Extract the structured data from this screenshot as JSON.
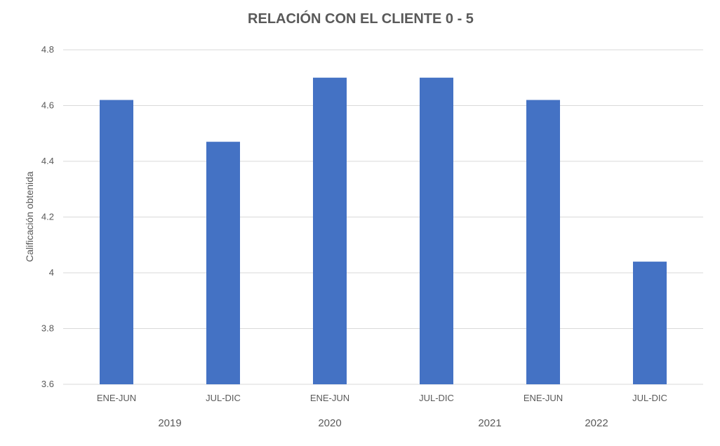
{
  "chart_data": {
    "type": "bar",
    "title": "RELACIÓN CON EL CLIENTE 0 - 5",
    "ylabel": "Calificación obtenida",
    "xlabel": "",
    "categories": [
      "ENE-JUN",
      "JUL-DIC",
      "ENE-JUN",
      "JUL-DIC",
      "ENE-JUN",
      "JUL-DIC"
    ],
    "groups": [
      {
        "label": "2019",
        "start": 0,
        "end": 1
      },
      {
        "label": "2020",
        "start": 1,
        "end": 3
      },
      {
        "label": "2021",
        "start": 3,
        "end": 4
      },
      {
        "label": "2022",
        "start": 4,
        "end": 5
      }
    ],
    "values": [
      4.62,
      4.47,
      4.7,
      4.7,
      4.62,
      4.04
    ],
    "ylim": [
      3.6,
      4.8
    ],
    "yticks": [
      "3.6",
      "3.8",
      "4",
      "4.2",
      "4.4",
      "4.6",
      "4.8"
    ],
    "grid": true,
    "bar_color": "#4472c4",
    "grid_color": "#d9d9d9",
    "text_color": "#595959"
  }
}
